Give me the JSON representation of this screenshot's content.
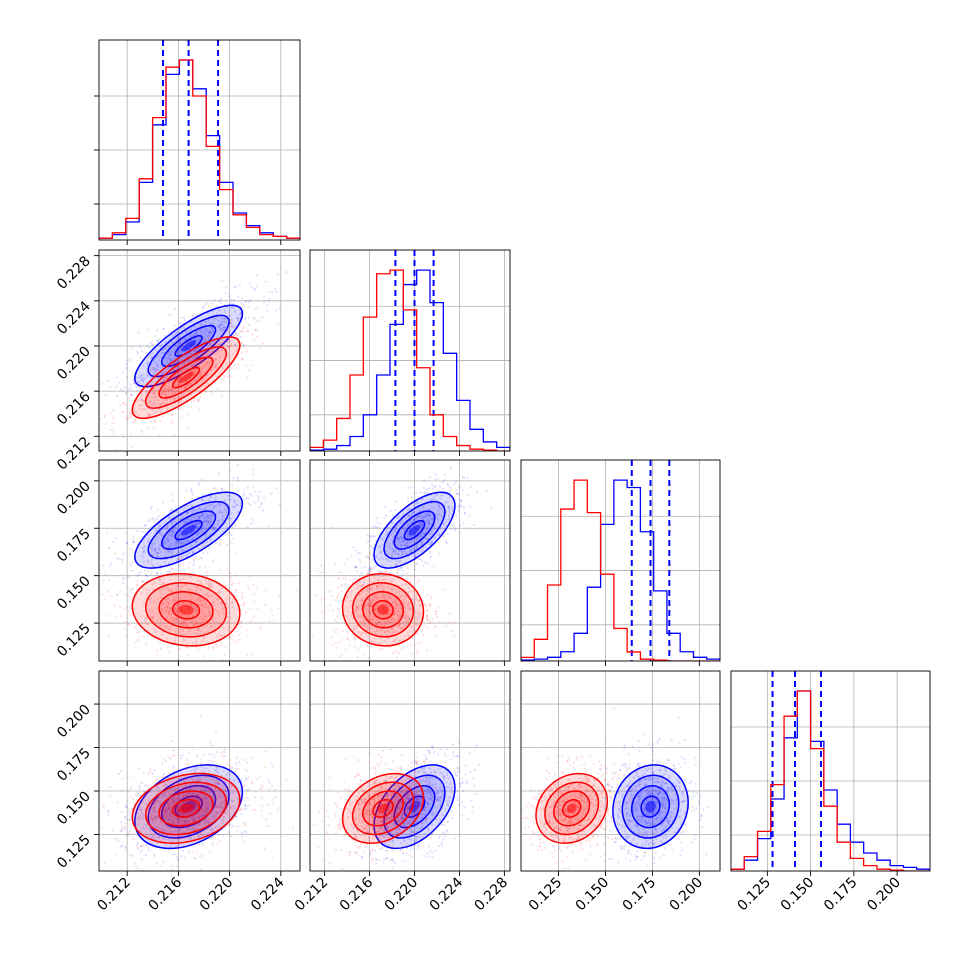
{
  "chart_data": {
    "type": "corner",
    "title": "",
    "parameters": [
      {
        "label": "",
        "range": [
          0.2098,
          0.2255
        ],
        "ticks": [
          0.212,
          0.216,
          0.22,
          0.224
        ],
        "tick_labels": [
          "0.212",
          "0.216",
          "0.220",
          "0.224"
        ]
      },
      {
        "label": "",
        "range": [
          0.2107,
          0.2285
        ],
        "ticks": [
          0.212,
          0.216,
          0.22,
          0.224,
          0.228
        ],
        "tick_labels": [
          "0.212",
          "0.216",
          "0.220",
          "0.224",
          "0.228"
        ]
      },
      {
        "label": "",
        "range": [
          0.105,
          0.211
        ],
        "ticks": [
          0.125,
          0.15,
          0.175,
          0.2
        ],
        "tick_labels": [
          "0.125",
          "0.150",
          "0.175",
          "0.200"
        ]
      },
      {
        "label": "",
        "range": [
          0.104,
          0.219
        ],
        "ticks": [
          0.125,
          0.15,
          0.175,
          0.2
        ],
        "tick_labels": [
          "0.125",
          "0.150",
          "0.175",
          "0.200"
        ]
      }
    ],
    "grid": true,
    "series": [
      {
        "color": "#0000ff",
        "mean": [
          0.2168,
          0.22,
          0.174,
          0.141
        ],
        "sd": [
          0.0021,
          0.0018,
          0.01,
          0.012
        ],
        "corr": [
          [
            1.0,
            0.8,
            0.7,
            0.35
          ],
          [
            0.8,
            1.0,
            0.65,
            0.45
          ],
          [
            0.7,
            0.65,
            1.0,
            0.1
          ],
          [
            0.35,
            0.45,
            0.1,
            1.0
          ]
        ],
        "quantile_lines": [
          [
            0.2148,
            0.2168,
            0.2191
          ],
          [
            0.2183,
            0.22,
            0.2217
          ],
          [
            0.164,
            0.174,
            0.184
          ],
          [
            0.128,
            0.141,
            0.156
          ]
        ],
        "histograms": [
          [
            1,
            3,
            10,
            32,
            64,
            92,
            100,
            84,
            58,
            32,
            15,
            8,
            4,
            2,
            1
          ],
          [
            0.5,
            1,
            3,
            8,
            20,
            42,
            70,
            92,
            100,
            82,
            54,
            28,
            12,
            5,
            2
          ],
          [
            0.5,
            1,
            2,
            5,
            15,
            40,
            74,
            98,
            94,
            70,
            38,
            15,
            5,
            2,
            1
          ],
          [
            1,
            6,
            18,
            40,
            74,
            100,
            72,
            45,
            26,
            16,
            10,
            6,
            3,
            2,
            1
          ]
        ]
      },
      {
        "color": "#ff0000",
        "mean": [
          0.2166,
          0.2172,
          0.132,
          0.14
        ],
        "sd": [
          0.0021,
          0.0018,
          0.0095,
          0.01
        ],
        "corr": [
          [
            1.0,
            0.8,
            -0.1,
            0.25
          ],
          [
            0.8,
            1.0,
            -0.05,
            0.3
          ],
          [
            -0.1,
            -0.05,
            1.0,
            0.2
          ],
          [
            0.25,
            0.3,
            0.2,
            1.0
          ]
        ],
        "histograms": [
          [
            1,
            4,
            12,
            34,
            68,
            96,
            100,
            80,
            52,
            28,
            14,
            7,
            3,
            2,
            1
          ],
          [
            2,
            6,
            18,
            42,
            74,
            98,
            100,
            78,
            46,
            20,
            8,
            3,
            1,
            0.5,
            0
          ],
          [
            2,
            12,
            42,
            84,
            100,
            82,
            48,
            18,
            5,
            1,
            0.5,
            0,
            0,
            0,
            0
          ],
          [
            1,
            8,
            22,
            48,
            86,
            100,
            68,
            36,
            16,
            7,
            3,
            1,
            0.5,
            0,
            0
          ]
        ]
      }
    ]
  }
}
